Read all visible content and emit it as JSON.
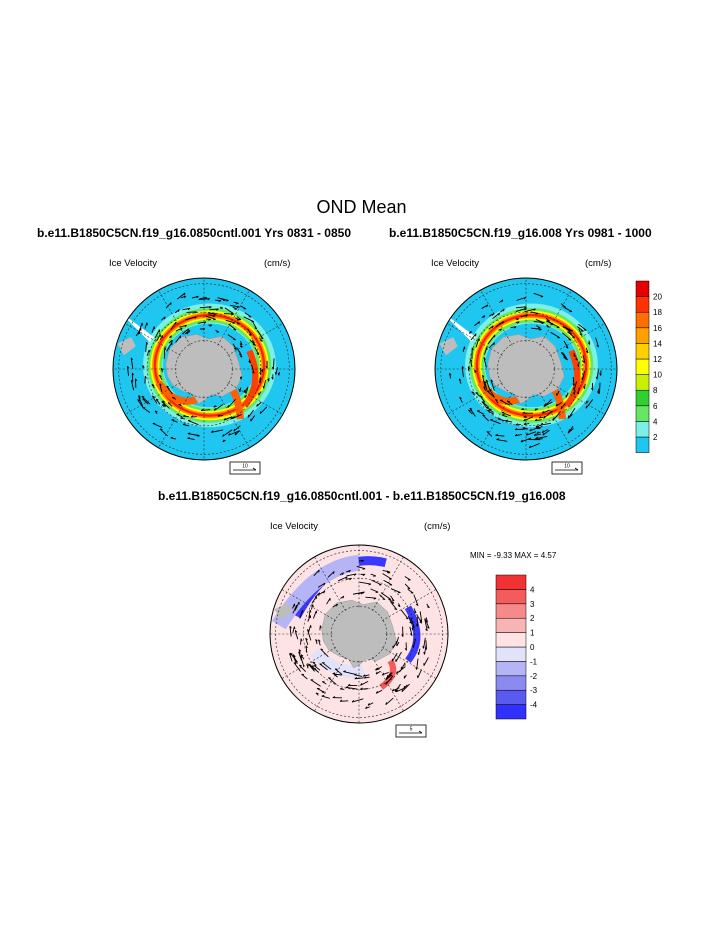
{
  "page": {
    "title": "OND Mean"
  },
  "colors": {
    "ocean": "#1fc6ef",
    "land": "#bdbdbd",
    "diff_background": "#fde3e3"
  },
  "chart_data": [
    {
      "type": "vector-map",
      "title": "b.e11.B1850C5CN.f19_g16.0850cntl.001  Yrs 0831 - 0850",
      "left_label": "Ice Velocity",
      "right_label": "(cm/s)",
      "ref_vector_label": "10"
    },
    {
      "type": "vector-map",
      "title": "b.e11.B1850C5CN.f19_g16.008  Yrs 0981 - 1000",
      "left_label": "Ice Velocity",
      "right_label": "(cm/s)",
      "ref_vector_label": "10",
      "colorbar": {
        "labels": [
          "20",
          "18",
          "16",
          "14",
          "12",
          "10",
          "8",
          "6",
          "4",
          "2"
        ],
        "colors_bottom_to_top": [
          "#1fc6ef",
          "#7cf0e6",
          "#64e864",
          "#2fd02f",
          "#c8f000",
          "#ffff00",
          "#ffd000",
          "#ffa000",
          "#ff6e00",
          "#ff3200",
          "#e60000"
        ]
      }
    },
    {
      "type": "vector-map-difference",
      "title": "b.e11.B1850C5CN.f19_g16.0850cntl.001 - b.e11.B1850C5CN.f19_g16.008",
      "left_label": "Ice Velocity",
      "right_label": "(cm/s)",
      "stats": "MIN =  -9.33 MAX =   4.57",
      "ref_vector_label": "5",
      "colorbar": {
        "labels": [
          "4",
          "3",
          "2",
          "1",
          "0",
          "-1",
          "-2",
          "-3",
          "-4"
        ],
        "colors_bottom_to_top": [
          "#3030ff",
          "#5a5af0",
          "#8a8af0",
          "#b4b4f6",
          "#e2e2fb",
          "#fde3e3",
          "#f8b4b4",
          "#f68a8a",
          "#f45c5c",
          "#f23232"
        ]
      }
    }
  ]
}
